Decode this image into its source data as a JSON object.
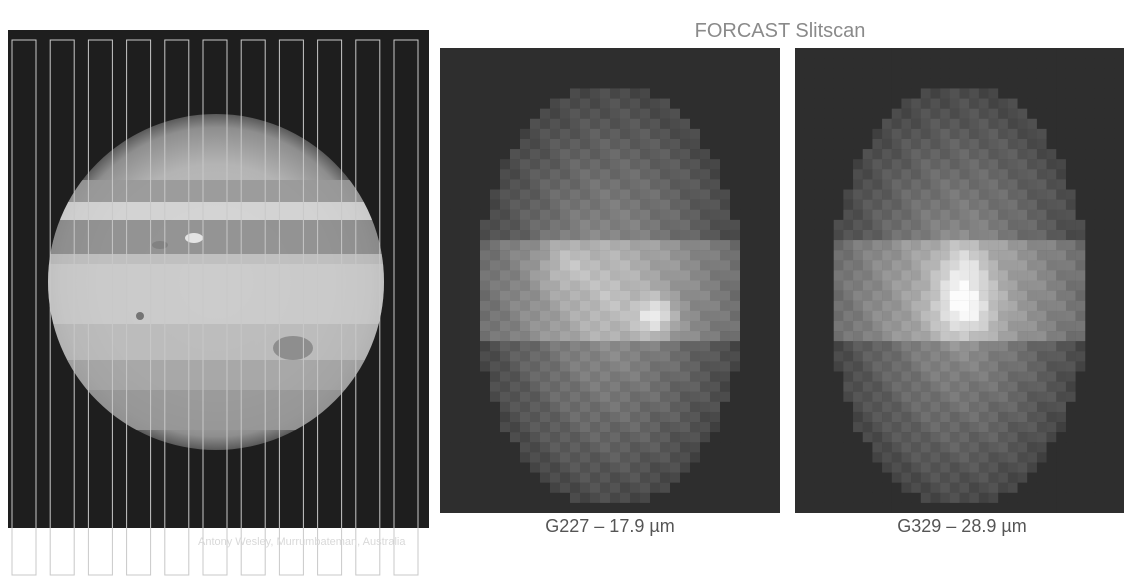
{
  "title": "FORCAST Slitscan",
  "left_image": {
    "credit": "Antony Wesley, Murrumbateman, Australia",
    "slit_count": 11
  },
  "scans": [
    {
      "caption": "G227 – 17.9 µm"
    },
    {
      "caption": "G329 – 28.9 µm"
    }
  ],
  "colors": {
    "background": "#ffffff",
    "panel_dark": "#2e2e2e",
    "title_text": "#8a8a8a",
    "caption_text": "#555555"
  }
}
